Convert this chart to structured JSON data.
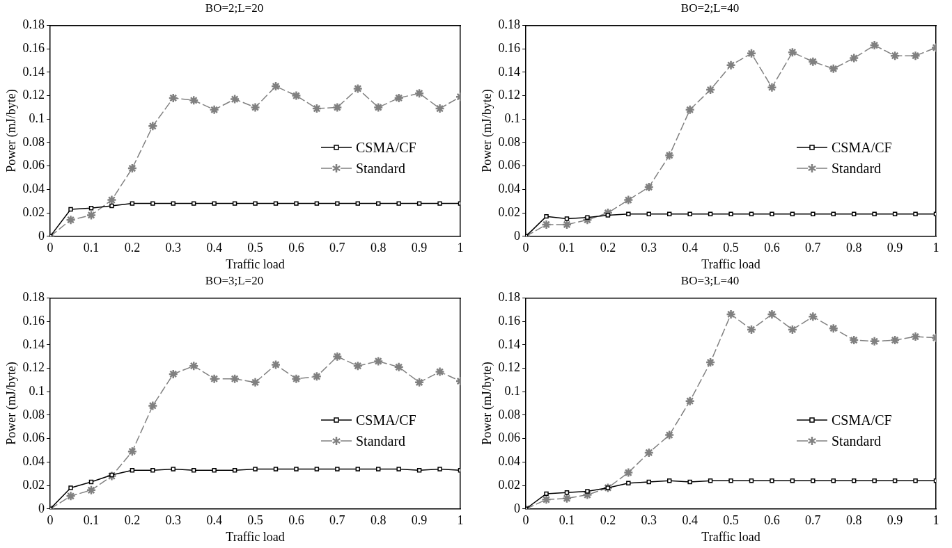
{
  "chart_data": [
    {
      "type": "line",
      "title": "BO=2;L=20",
      "xlabel": "Traffic load",
      "ylabel": "Power (mJ/byte)",
      "x": [
        0,
        0.05,
        0.1,
        0.15,
        0.2,
        0.25,
        0.3,
        0.35,
        0.4,
        0.45,
        0.5,
        0.55,
        0.6,
        0.65,
        0.7,
        0.75,
        0.8,
        0.85,
        0.9,
        0.95,
        1
      ],
      "xlim": [
        0,
        1
      ],
      "xticks": [
        0,
        0.1,
        0.2,
        0.3,
        0.4,
        0.5,
        0.6,
        0.7,
        0.8,
        0.9,
        1
      ],
      "ylim": [
        0,
        0.18
      ],
      "yticks": [
        0,
        0.02,
        0.04,
        0.06,
        0.08,
        0.1,
        0.12,
        0.14,
        0.16,
        0.18
      ],
      "grid": false,
      "legend": "right",
      "series": [
        {
          "name": "CSMA/CF",
          "color": "#000000",
          "marker": "square",
          "line_style": "solid",
          "values": [
            0,
            0.023,
            0.024,
            0.026,
            0.028,
            0.028,
            0.028,
            0.028,
            0.028,
            0.028,
            0.028,
            0.028,
            0.028,
            0.028,
            0.028,
            0.028,
            0.028,
            0.028,
            0.028,
            0.028,
            0.028
          ]
        },
        {
          "name": "Standard",
          "color": "#808080",
          "marker": "cross",
          "line_style": "dashed",
          "values": [
            0,
            0.014,
            0.018,
            0.031,
            0.058,
            0.094,
            0.118,
            0.116,
            0.108,
            0.117,
            0.11,
            0.128,
            0.12,
            0.109,
            0.11,
            0.126,
            0.11,
            0.118,
            0.122,
            0.109,
            0.119
          ]
        }
      ]
    },
    {
      "type": "line",
      "title": "BO=2;L=40",
      "xlabel": "Traffic load",
      "ylabel": "Power (mJ/byte)",
      "x": [
        0,
        0.05,
        0.1,
        0.15,
        0.2,
        0.25,
        0.3,
        0.35,
        0.4,
        0.45,
        0.5,
        0.55,
        0.6,
        0.65,
        0.7,
        0.75,
        0.8,
        0.85,
        0.9,
        0.95,
        1
      ],
      "xlim": [
        0,
        1
      ],
      "xticks": [
        0,
        0.1,
        0.2,
        0.3,
        0.4,
        0.5,
        0.6,
        0.7,
        0.8,
        0.9,
        1
      ],
      "ylim": [
        0,
        0.18
      ],
      "yticks": [
        0,
        0.02,
        0.04,
        0.06,
        0.08,
        0.1,
        0.12,
        0.14,
        0.16,
        0.18
      ],
      "grid": false,
      "legend": "right",
      "series": [
        {
          "name": "CSMA/CF",
          "color": "#000000",
          "marker": "square",
          "line_style": "solid",
          "values": [
            0,
            0.017,
            0.015,
            0.016,
            0.018,
            0.019,
            0.019,
            0.019,
            0.019,
            0.019,
            0.019,
            0.019,
            0.019,
            0.019,
            0.019,
            0.019,
            0.019,
            0.019,
            0.019,
            0.019,
            0.019
          ]
        },
        {
          "name": "Standard",
          "color": "#808080",
          "marker": "cross",
          "line_style": "dashed",
          "values": [
            0,
            0.01,
            0.01,
            0.014,
            0.02,
            0.031,
            0.042,
            0.069,
            0.108,
            0.125,
            0.146,
            0.156,
            0.127,
            0.157,
            0.149,
            0.143,
            0.152,
            0.163,
            0.154,
            0.154,
            0.161
          ]
        }
      ]
    },
    {
      "type": "line",
      "title": "BO=3;L=20",
      "xlabel": "Traffic load",
      "ylabel": "Power (mJ/byte)",
      "x": [
        0,
        0.05,
        0.1,
        0.15,
        0.2,
        0.25,
        0.3,
        0.35,
        0.4,
        0.45,
        0.5,
        0.55,
        0.6,
        0.65,
        0.7,
        0.75,
        0.8,
        0.85,
        0.9,
        0.95,
        1
      ],
      "xlim": [
        0,
        1
      ],
      "xticks": [
        0,
        0.1,
        0.2,
        0.3,
        0.4,
        0.5,
        0.6,
        0.7,
        0.8,
        0.9,
        1
      ],
      "ylim": [
        0,
        0.18
      ],
      "yticks": [
        0,
        0.02,
        0.04,
        0.06,
        0.08,
        0.1,
        0.12,
        0.14,
        0.16,
        0.18
      ],
      "grid": false,
      "legend": "right",
      "series": [
        {
          "name": "CSMA/CF",
          "color": "#000000",
          "marker": "square",
          "line_style": "solid",
          "values": [
            0,
            0.018,
            0.023,
            0.029,
            0.033,
            0.033,
            0.034,
            0.033,
            0.033,
            0.033,
            0.034,
            0.034,
            0.034,
            0.034,
            0.034,
            0.034,
            0.034,
            0.034,
            0.033,
            0.034,
            0.033
          ]
        },
        {
          "name": "Standard",
          "color": "#808080",
          "marker": "cross",
          "line_style": "dashed",
          "values": [
            0,
            0.011,
            0.016,
            0.028,
            0.049,
            0.088,
            0.115,
            0.122,
            0.111,
            0.111,
            0.108,
            0.123,
            0.111,
            0.113,
            0.13,
            0.122,
            0.126,
            0.121,
            0.108,
            0.117,
            0.109
          ]
        }
      ]
    },
    {
      "type": "line",
      "title": "BO=3;L=40",
      "xlabel": "Traffic load",
      "ylabel": "Power (mJ/byte)",
      "x": [
        0,
        0.05,
        0.1,
        0.15,
        0.2,
        0.25,
        0.3,
        0.35,
        0.4,
        0.45,
        0.5,
        0.55,
        0.6,
        0.65,
        0.7,
        0.75,
        0.8,
        0.85,
        0.9,
        0.95,
        1
      ],
      "xlim": [
        0,
        1
      ],
      "xticks": [
        0,
        0.1,
        0.2,
        0.3,
        0.4,
        0.5,
        0.6,
        0.7,
        0.8,
        0.9,
        1
      ],
      "ylim": [
        0,
        0.18
      ],
      "yticks": [
        0,
        0.02,
        0.04,
        0.06,
        0.08,
        0.1,
        0.12,
        0.14,
        0.16,
        0.18
      ],
      "grid": false,
      "legend": "right",
      "series": [
        {
          "name": "CSMA/CF",
          "color": "#000000",
          "marker": "square",
          "line_style": "solid",
          "values": [
            0,
            0.013,
            0.014,
            0.015,
            0.018,
            0.022,
            0.023,
            0.024,
            0.023,
            0.024,
            0.024,
            0.024,
            0.024,
            0.024,
            0.024,
            0.024,
            0.024,
            0.024,
            0.024,
            0.024,
            0.024
          ]
        },
        {
          "name": "Standard",
          "color": "#808080",
          "marker": "cross",
          "line_style": "dashed",
          "values": [
            0,
            0.008,
            0.009,
            0.012,
            0.018,
            0.031,
            0.048,
            0.063,
            0.092,
            0.125,
            0.166,
            0.153,
            0.166,
            0.153,
            0.164,
            0.154,
            0.144,
            0.143,
            0.144,
            0.147,
            0.146
          ]
        }
      ]
    }
  ]
}
